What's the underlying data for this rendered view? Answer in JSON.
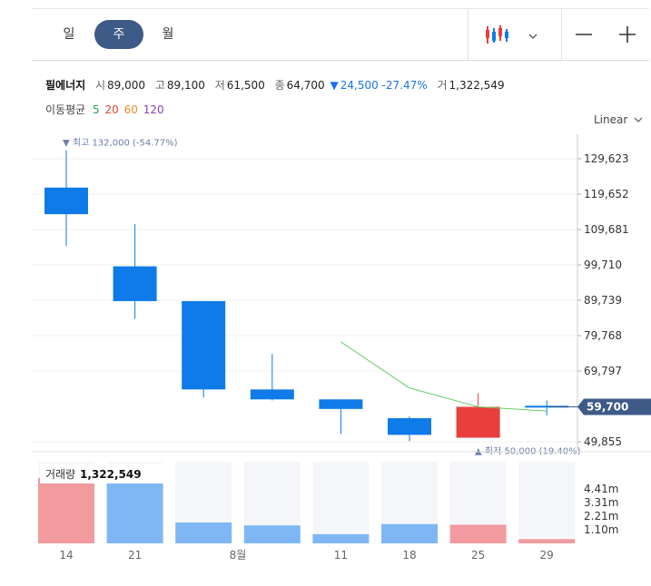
{
  "toolbar": {
    "tabs": [
      {
        "label": "일"
      },
      {
        "label": "주",
        "active": true
      },
      {
        "label": "월"
      }
    ],
    "chart_type_icon": "candlestick-icon",
    "dropdown_icon": "chevron-down-icon",
    "zoom_out_icon": "minus-icon",
    "zoom_in_icon": "plus-icon"
  },
  "stock": {
    "name": "필에너지",
    "open_label": "시",
    "open": "89,000",
    "high_label": "고",
    "high": "89,100",
    "low_label": "저",
    "low": "61,500",
    "close_label": "종",
    "close": "64,700",
    "change": "24,500 -27.47%",
    "volume_label": "거",
    "volume": "1,322,549"
  },
  "moving_average": {
    "label": "이동평균",
    "periods": [
      {
        "value": "5",
        "color": "#2e9e4f"
      },
      {
        "value": "20",
        "color": "#e5483d"
      },
      {
        "value": "60",
        "color": "#f08a24"
      },
      {
        "value": "120",
        "color": "#8e44ad"
      }
    ]
  },
  "scale_label": "Linear",
  "colors": {
    "up": "#e83e3e",
    "down": "#0f7be8",
    "ma5": "#66cc66",
    "up_volume": "#f29b9f",
    "down_volume": "#7fb7f5"
  },
  "chart_data": {
    "type": "candlestick",
    "x_ticks": [
      "14",
      "21",
      "8월",
      "11",
      "18",
      "25",
      "29"
    ],
    "y_ticks": [
      "129,623",
      "119,652",
      "109,681",
      "99,710",
      "89,739",
      "79,768",
      "69,797",
      "49,855"
    ],
    "ylim": [
      47000,
      138000
    ],
    "candles": [
      {
        "open": 121500,
        "high": 132000,
        "low": 105000,
        "close": 114000
      },
      {
        "open": 99300,
        "high": 111200,
        "low": 84500,
        "close": 89500
      },
      {
        "open": 89500,
        "high": 89500,
        "low": 62300,
        "close": 64600
      },
      {
        "open": 64600,
        "high": 74600,
        "low": 61500,
        "close": 61800
      },
      {
        "open": 61800,
        "high": 61800,
        "low": 52000,
        "close": 59100
      },
      {
        "open": 56500,
        "high": 57000,
        "low": 50000,
        "close": 51800
      },
      {
        "open": 51000,
        "high": 63500,
        "low": 51000,
        "close": 59700
      },
      {
        "open": 60000,
        "high": 61500,
        "low": 57300,
        "close": 59700
      }
    ],
    "ma5": [
      {
        "index": 4,
        "value": 78000
      },
      {
        "index": 5,
        "value": 65000
      },
      {
        "index": 6,
        "value": 59700
      },
      {
        "index": 7,
        "value": 58500
      }
    ],
    "current_price": "59,700",
    "current_value": 59700,
    "max_annotation": "최고 132,000 (-54.77%)",
    "min_annotation": "최저 50,000 (19.40%)",
    "volume": {
      "label": "거래량",
      "value_text": "1,322,549",
      "y_ticks": [
        "4.41m",
        "3.31m",
        "2.21m",
        "1.10m"
      ],
      "max": 5000000,
      "bars": [
        {
          "value": 4000000,
          "up": true
        },
        {
          "value": 4280000,
          "up": false
        },
        {
          "value": 1280000,
          "up": false
        },
        {
          "value": 1100000,
          "up": false
        },
        {
          "value": 560000,
          "up": false
        },
        {
          "value": 1180000,
          "up": false
        },
        {
          "value": 1140000,
          "up": true
        },
        {
          "value": 260000,
          "up": true
        }
      ]
    }
  }
}
